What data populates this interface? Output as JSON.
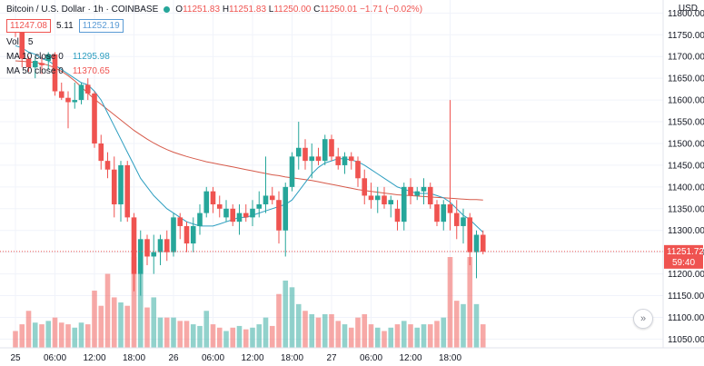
{
  "header": {
    "title": "Bitcoin / U.S. Dollar · 1h · COINBASE",
    "ohlc": {
      "o_label": "O",
      "o": "11251.83",
      "h_label": "H",
      "h": "11251.83",
      "l_label": "L",
      "l": "11250.00",
      "c_label": "C",
      "c": "11250.01",
      "change": "−1.71 (−0.02%)"
    },
    "bid": "11247.08",
    "spread": "5.11",
    "ask": "11252.19",
    "currency": "USD"
  },
  "indicators": {
    "volume": {
      "label": "Vol",
      "value": "5"
    },
    "ma10": {
      "label": "MA 10 close 0",
      "value": "11295.98"
    },
    "ma50": {
      "label": "MA 50 close 0",
      "value": "11370.65"
    }
  },
  "price_axis": {
    "ticks": [
      "11800.00",
      "11750.00",
      "11700.00",
      "11650.00",
      "11600.00",
      "11550.00",
      "11500.00",
      "11450.00",
      "11400.00",
      "11350.00",
      "11300.00",
      "11250.00",
      "11200.00",
      "11150.00",
      "11100.00",
      "11050.00"
    ],
    "last_price": "11251.72",
    "countdown": "59:40"
  },
  "time_axis": {
    "ticks": [
      {
        "label": "25",
        "bar": 0
      },
      {
        "label": "06:00",
        "bar": 6
      },
      {
        "label": "12:00",
        "bar": 12
      },
      {
        "label": "18:00",
        "bar": 18
      },
      {
        "label": "26",
        "bar": 24
      },
      {
        "label": "06:00",
        "bar": 30
      },
      {
        "label": "12:00",
        "bar": 36
      },
      {
        "label": "18:00",
        "bar": 42
      },
      {
        "label": "27",
        "bar": 48
      },
      {
        "label": "06:00",
        "bar": 54
      },
      {
        "label": "12:00",
        "bar": 60
      },
      {
        "label": "18:00",
        "bar": 66
      }
    ]
  },
  "colors": {
    "up": "#26a69a",
    "down": "#ef5350",
    "ma10": "#2d9ec0",
    "ma50": "#d65a4a",
    "grid": "#f0f3fa",
    "axis_text": "#131722"
  },
  "chart_data": {
    "type": "candlestick",
    "title": "Bitcoin / U.S. Dollar · 1h · COINBASE",
    "interval": "1h",
    "ylim": [
      11030,
      11830
    ],
    "grid": true,
    "candles": [
      {
        "o": 11770,
        "h": 11780,
        "l": 11745,
        "c": 11760,
        "v": 10
      },
      {
        "o": 11760,
        "h": 11770,
        "l": 11675,
        "c": 11695,
        "v": 14
      },
      {
        "o": 11695,
        "h": 11700,
        "l": 11665,
        "c": 11675,
        "v": 22
      },
      {
        "o": 11675,
        "h": 11700,
        "l": 11650,
        "c": 11690,
        "v": 15
      },
      {
        "o": 11685,
        "h": 11700,
        "l": 11660,
        "c": 11680,
        "v": 14
      },
      {
        "o": 11690,
        "h": 11710,
        "l": 11670,
        "c": 11705,
        "v": 16
      },
      {
        "o": 11705,
        "h": 11710,
        "l": 11610,
        "c": 11620,
        "v": 18
      },
      {
        "o": 11620,
        "h": 11640,
        "l": 11600,
        "c": 11605,
        "v": 15
      },
      {
        "o": 11605,
        "h": 11620,
        "l": 11535,
        "c": 11595,
        "v": 14
      },
      {
        "o": 11595,
        "h": 11640,
        "l": 11580,
        "c": 11600,
        "v": 12
      },
      {
        "o": 11600,
        "h": 11640,
        "l": 11590,
        "c": 11635,
        "v": 15
      },
      {
        "o": 11635,
        "h": 11650,
        "l": 11600,
        "c": 11615,
        "v": 14
      },
      {
        "o": 11615,
        "h": 11620,
        "l": 11490,
        "c": 11500,
        "v": 34
      },
      {
        "o": 11500,
        "h": 11520,
        "l": 11440,
        "c": 11460,
        "v": 25
      },
      {
        "o": 11460,
        "h": 11480,
        "l": 11420,
        "c": 11440,
        "v": 44
      },
      {
        "o": 11440,
        "h": 11470,
        "l": 11330,
        "c": 11360,
        "v": 30
      },
      {
        "o": 11360,
        "h": 11460,
        "l": 11320,
        "c": 11450,
        "v": 27
      },
      {
        "o": 11450,
        "h": 11460,
        "l": 11320,
        "c": 11330,
        "v": 25
      },
      {
        "o": 11330,
        "h": 11340,
        "l": 11160,
        "c": 11200,
        "v": 54
      },
      {
        "o": 11200,
        "h": 11300,
        "l": 11150,
        "c": 11280,
        "v": 50
      },
      {
        "o": 11280,
        "h": 11290,
        "l": 11220,
        "c": 11240,
        "v": 24
      },
      {
        "o": 11240,
        "h": 11290,
        "l": 11200,
        "c": 11250,
        "v": 30
      },
      {
        "o": 11250,
        "h": 11290,
        "l": 11220,
        "c": 11280,
        "v": 18
      },
      {
        "o": 11280,
        "h": 11300,
        "l": 11230,
        "c": 11250,
        "v": 18
      },
      {
        "o": 11250,
        "h": 11340,
        "l": 11240,
        "c": 11330,
        "v": 18
      },
      {
        "o": 11330,
        "h": 11340,
        "l": 11280,
        "c": 11310,
        "v": 16
      },
      {
        "o": 11310,
        "h": 11320,
        "l": 11250,
        "c": 11270,
        "v": 16
      },
      {
        "o": 11270,
        "h": 11330,
        "l": 11250,
        "c": 11310,
        "v": 14
      },
      {
        "o": 11310,
        "h": 11360,
        "l": 11290,
        "c": 11340,
        "v": 13
      },
      {
        "o": 11340,
        "h": 11400,
        "l": 11330,
        "c": 11390,
        "v": 22
      },
      {
        "o": 11390,
        "h": 11400,
        "l": 11340,
        "c": 11360,
        "v": 14
      },
      {
        "o": 11360,
        "h": 11380,
        "l": 11330,
        "c": 11350,
        "v": 12
      },
      {
        "o": 11330,
        "h": 11370,
        "l": 11320,
        "c": 11350,
        "v": 10
      },
      {
        "o": 11350,
        "h": 11360,
        "l": 11310,
        "c": 11320,
        "v": 12
      },
      {
        "o": 11320,
        "h": 11360,
        "l": 11290,
        "c": 11340,
        "v": 13
      },
      {
        "o": 11340,
        "h": 11360,
        "l": 11320,
        "c": 11330,
        "v": 11
      },
      {
        "o": 11330,
        "h": 11370,
        "l": 11310,
        "c": 11350,
        "v": 12
      },
      {
        "o": 11350,
        "h": 11390,
        "l": 11330,
        "c": 11360,
        "v": 14
      },
      {
        "o": 11360,
        "h": 11470,
        "l": 11340,
        "c": 11380,
        "v": 18
      },
      {
        "o": 11380,
        "h": 11400,
        "l": 11360,
        "c": 11370,
        "v": 13
      },
      {
        "o": 11370,
        "h": 11390,
        "l": 11270,
        "c": 11300,
        "v": 32
      },
      {
        "o": 11300,
        "h": 11410,
        "l": 11240,
        "c": 11400,
        "v": 40
      },
      {
        "o": 11400,
        "h": 11480,
        "l": 11390,
        "c": 11470,
        "v": 36
      },
      {
        "o": 11470,
        "h": 11550,
        "l": 11440,
        "c": 11490,
        "v": 26
      },
      {
        "o": 11490,
        "h": 11510,
        "l": 11440,
        "c": 11460,
        "v": 22
      },
      {
        "o": 11460,
        "h": 11500,
        "l": 11420,
        "c": 11470,
        "v": 20
      },
      {
        "o": 11470,
        "h": 11490,
        "l": 11450,
        "c": 11460,
        "v": 18
      },
      {
        "o": 11460,
        "h": 11520,
        "l": 11450,
        "c": 11510,
        "v": 20
      },
      {
        "o": 11510,
        "h": 11520,
        "l": 11460,
        "c": 11470,
        "v": 20
      },
      {
        "o": 11470,
        "h": 11490,
        "l": 11440,
        "c": 11450,
        "v": 16
      },
      {
        "o": 11450,
        "h": 11480,
        "l": 11430,
        "c": 11470,
        "v": 14
      },
      {
        "o": 11470,
        "h": 11480,
        "l": 11440,
        "c": 11460,
        "v": 12
      },
      {
        "o": 11460,
        "h": 11470,
        "l": 11400,
        "c": 11420,
        "v": 18
      },
      {
        "o": 11420,
        "h": 11440,
        "l": 11360,
        "c": 11380,
        "v": 20
      },
      {
        "o": 11380,
        "h": 11410,
        "l": 11350,
        "c": 11370,
        "v": 14
      },
      {
        "o": 11370,
        "h": 11400,
        "l": 11340,
        "c": 11380,
        "v": 12
      },
      {
        "o": 11380,
        "h": 11400,
        "l": 11350,
        "c": 11360,
        "v": 10
      },
      {
        "o": 11360,
        "h": 11380,
        "l": 11330,
        "c": 11370,
        "v": 12
      },
      {
        "o": 11350,
        "h": 11370,
        "l": 11300,
        "c": 11320,
        "v": 14
      },
      {
        "o": 11320,
        "h": 11410,
        "l": 11300,
        "c": 11400,
        "v": 16
      },
      {
        "o": 11400,
        "h": 11420,
        "l": 11360,
        "c": 11380,
        "v": 14
      },
      {
        "o": 11380,
        "h": 11400,
        "l": 11370,
        "c": 11390,
        "v": 12
      },
      {
        "o": 11390,
        "h": 11420,
        "l": 11360,
        "c": 11400,
        "v": 14
      },
      {
        "o": 11400,
        "h": 11410,
        "l": 11350,
        "c": 11360,
        "v": 14
      },
      {
        "o": 11360,
        "h": 11370,
        "l": 11310,
        "c": 11320,
        "v": 16
      },
      {
        "o": 11320,
        "h": 11370,
        "l": 11300,
        "c": 11360,
        "v": 18
      },
      {
        "o": 11360,
        "h": 11600,
        "l": 11300,
        "c": 11340,
        "v": 54
      },
      {
        "o": 11340,
        "h": 11370,
        "l": 11280,
        "c": 11310,
        "v": 28
      },
      {
        "o": 11310,
        "h": 11350,
        "l": 11270,
        "c": 11330,
        "v": 26
      },
      {
        "o": 11330,
        "h": 11340,
        "l": 11220,
        "c": 11250,
        "v": 54
      },
      {
        "o": 11250,
        "h": 11300,
        "l": 11190,
        "c": 11290,
        "v": 26
      },
      {
        "o": 11290,
        "h": 11300,
        "l": 11245,
        "c": 11251,
        "v": 14
      }
    ],
    "ma10": [
      11725,
      11720,
      11710,
      11705,
      11695,
      11690,
      11680,
      11670,
      11660,
      11650,
      11640,
      11635,
      11620,
      11600,
      11570,
      11540,
      11510,
      11480,
      11450,
      11420,
      11400,
      11380,
      11365,
      11350,
      11340,
      11330,
      11320,
      11315,
      11310,
      11310,
      11310,
      11315,
      11320,
      11325,
      11330,
      11330,
      11335,
      11340,
      11345,
      11350,
      11355,
      11360,
      11370,
      11390,
      11410,
      11430,
      11445,
      11455,
      11460,
      11465,
      11465,
      11462,
      11458,
      11450,
      11440,
      11430,
      11420,
      11410,
      11400,
      11395,
      11390,
      11385,
      11385,
      11385,
      11380,
      11375,
      11365,
      11350,
      11335,
      11325,
      11310,
      11296
    ],
    "ma50": [
      11690,
      11689,
      11688,
      11686,
      11684,
      11680,
      11674,
      11666,
      11656,
      11644,
      11630,
      11616,
      11602,
      11590,
      11578,
      11566,
      11554,
      11542,
      11530,
      11520,
      11510,
      11501,
      11493,
      11486,
      11480,
      11475,
      11470,
      11466,
      11462,
      11458,
      11455,
      11452,
      11449,
      11446,
      11443,
      11440,
      11437,
      11434,
      11431,
      11428,
      11426,
      11423,
      11421,
      11419,
      11417,
      11415,
      11412,
      11409,
      11406,
      11403,
      11400,
      11397,
      11394,
      11392,
      11390,
      11388,
      11386,
      11384,
      11382,
      11381,
      11380,
      11379,
      11378,
      11377,
      11376,
      11375,
      11374,
      11373,
      11372,
      11371,
      11371,
      11370
    ]
  }
}
